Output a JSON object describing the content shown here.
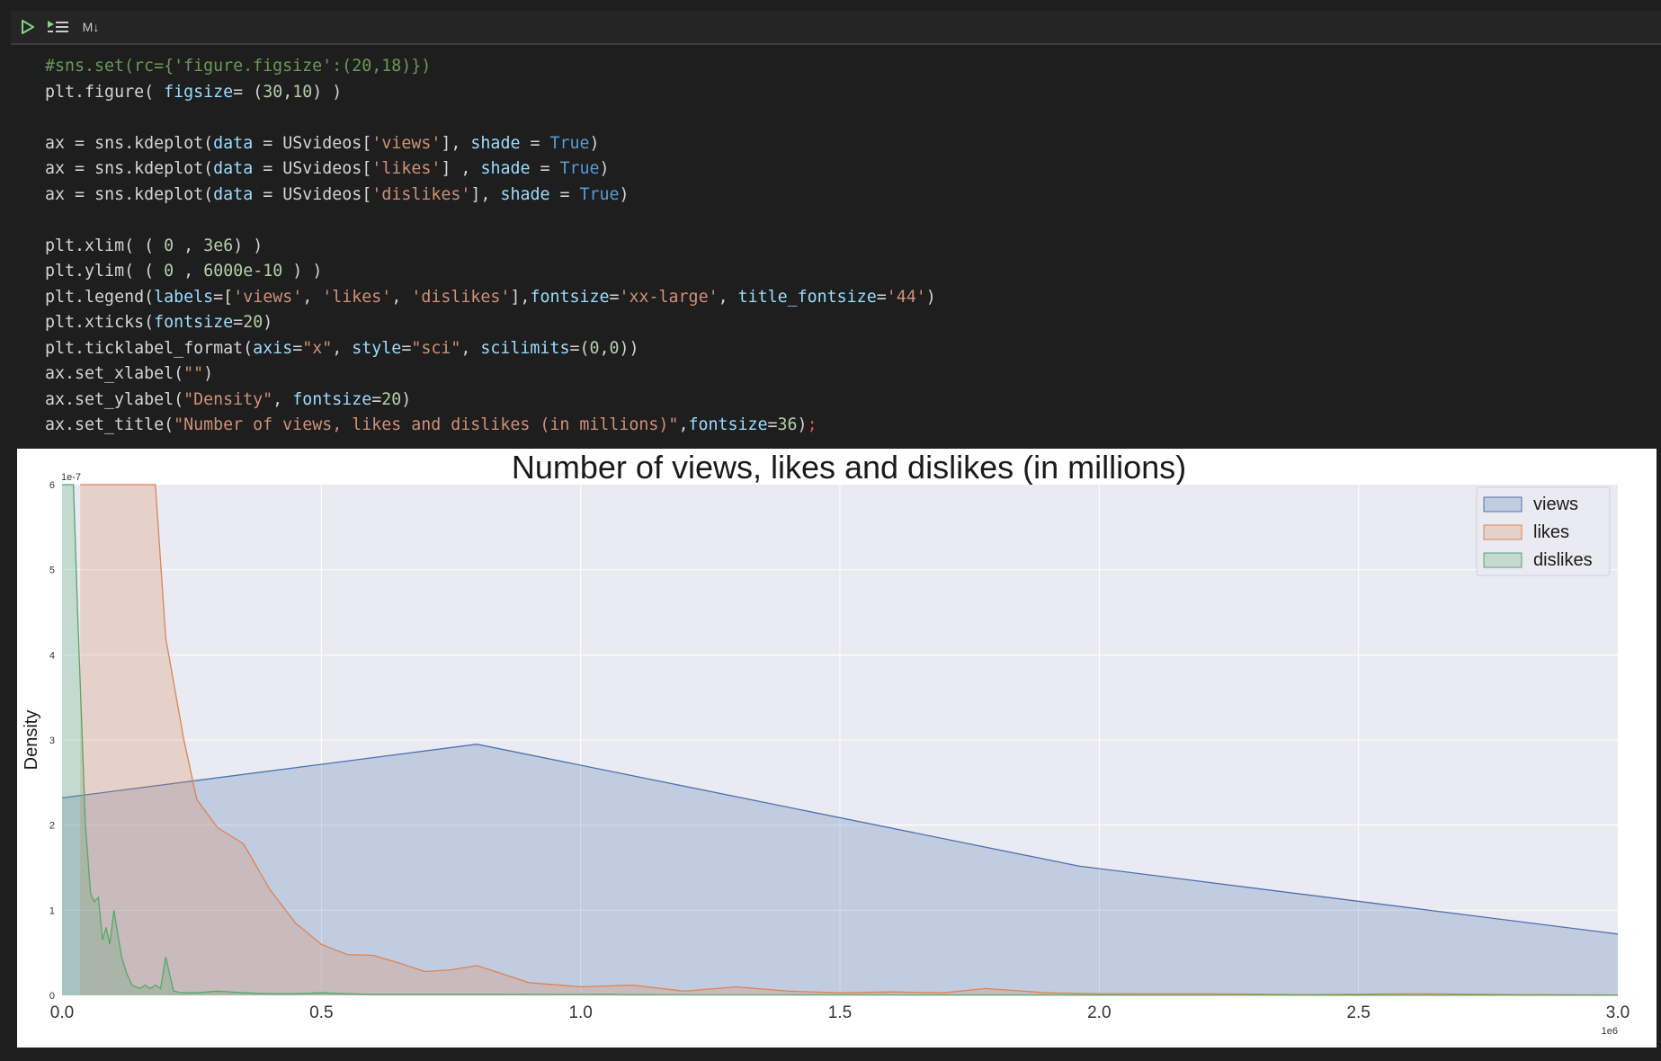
{
  "toolbar": {
    "run_icon": "play-icon",
    "run_below_icon": "run-below-icon",
    "cell_type_label": "M↓"
  },
  "code_lines": [
    "#sns.set(rc={'figure.figsize':(20,18)})",
    "plt.figure( figsize= (30,10) )",
    "",
    "ax = sns.kdeplot(data = USvideos['views'], shade = True)",
    "ax = sns.kdeplot(data = USvideos['likes'] , shade = True)",
    "ax = sns.kdeplot(data = USvideos['dislikes'], shade = True)",
    "",
    "plt.xlim( ( 0 , 3e6) )",
    "plt.ylim( ( 0 , 6000e-10 ) )",
    "plt.legend(labels=['views', 'likes', 'dislikes'],fontsize='xx-large', title_fontsize='44')",
    "plt.xticks(fontsize=20)",
    "plt.ticklabel_format(axis=\"x\", style=\"sci\", scilimits=(0,0))",
    "ax.set_xlabel(\"\")",
    "ax.set_ylabel(\"Density\", fontsize=20)",
    "ax.set_title(\"Number of views, likes and dislikes (in millions)\",fontsize=36);"
  ],
  "colors": {
    "views": "#4c72b0",
    "likes": "#dd8452",
    "dislikes": "#55a868",
    "plot_bg": "#eaeaf2"
  },
  "chart_data": {
    "type": "area",
    "title": "Number of views, likes and dislikes (in millions)",
    "xlabel": "",
    "ylabel": "Density",
    "xlim": [
      0,
      3000000
    ],
    "ylim": [
      0,
      6e-07
    ],
    "x_ticks": [
      0,
      500000,
      1000000,
      1500000,
      2000000,
      2500000,
      3000000
    ],
    "x_tick_labels": [
      "0.0",
      "0.5",
      "1.0",
      "1.5",
      "2.0",
      "2.5",
      "3.0"
    ],
    "x_offset_label": "1e6",
    "y_ticks": [
      0,
      1e-07,
      2e-07,
      3e-07,
      4e-07,
      5e-07,
      6e-07
    ],
    "y_tick_labels": [
      "0",
      "1",
      "2",
      "3",
      "4",
      "5",
      "6"
    ],
    "y_offset_label": "1e-7",
    "grid": true,
    "legend_position": "top-right",
    "series": [
      {
        "name": "views",
        "x": [
          0,
          800000,
          1960000,
          3000000
        ],
        "y": [
          2.32e-07,
          2.95e-07,
          1.52e-07,
          7.2e-08
        ]
      },
      {
        "name": "likes",
        "x": [
          35000,
          180000,
          200000,
          235000,
          260000,
          300000,
          350000,
          400000,
          450000,
          500000,
          550000,
          600000,
          650000,
          700000,
          750000,
          800000,
          850000,
          900000,
          1000000,
          1100000,
          1200000,
          1300000,
          1400000,
          1500000,
          1600000,
          1700000,
          1780000,
          1900000,
          2000000,
          2200000,
          2400000,
          2600000,
          2800000,
          3000000
        ],
        "y": [
          6e-07,
          6e-07,
          4.2e-07,
          3e-07,
          2.3e-07,
          1.97e-07,
          1.78e-07,
          1.25e-07,
          8.5e-08,
          6e-08,
          4.8e-08,
          4.7e-08,
          3.8e-08,
          2.8e-08,
          3e-08,
          3.5e-08,
          2.5e-08,
          1.5e-08,
          1e-08,
          1.2e-08,
          5e-09,
          1e-08,
          5e-09,
          3e-09,
          4e-09,
          3e-09,
          8e-09,
          3e-09,
          2e-09,
          2e-09,
          1e-09,
          2e-09,
          1e-09,
          5e-10
        ]
      },
      {
        "name": "dislikes",
        "x": [
          0,
          8000,
          22000,
          30000,
          45000,
          55000,
          62000,
          70000,
          78000,
          85000,
          92000,
          100000,
          108000,
          115000,
          125000,
          135000,
          150000,
          160000,
          170000,
          180000,
          190000,
          200000,
          215000,
          230000,
          260000,
          300000,
          350000,
          400000,
          450000,
          500000,
          600000,
          800000,
          1000000,
          1200000,
          1500000,
          1650000,
          2000000,
          2500000,
          3000000
        ],
        "y": [
          6e-07,
          6e-07,
          6e-07,
          4.5e-07,
          2e-07,
          1.2e-07,
          1.1e-07,
          1.15e-07,
          6.5e-08,
          8e-08,
          6e-08,
          1e-07,
          7e-08,
          4.5e-08,
          2.5e-08,
          1.2e-08,
          8e-09,
          1.2e-08,
          8e-09,
          1.2e-08,
          8e-09,
          4.5e-08,
          5e-09,
          3e-09,
          3e-09,
          5e-09,
          3e-09,
          2e-09,
          2e-09,
          3e-09,
          1e-09,
          1e-09,
          8e-10,
          5e-10,
          5e-10,
          4e-10,
          3e-10,
          2e-10,
          1e-10
        ]
      }
    ]
  }
}
